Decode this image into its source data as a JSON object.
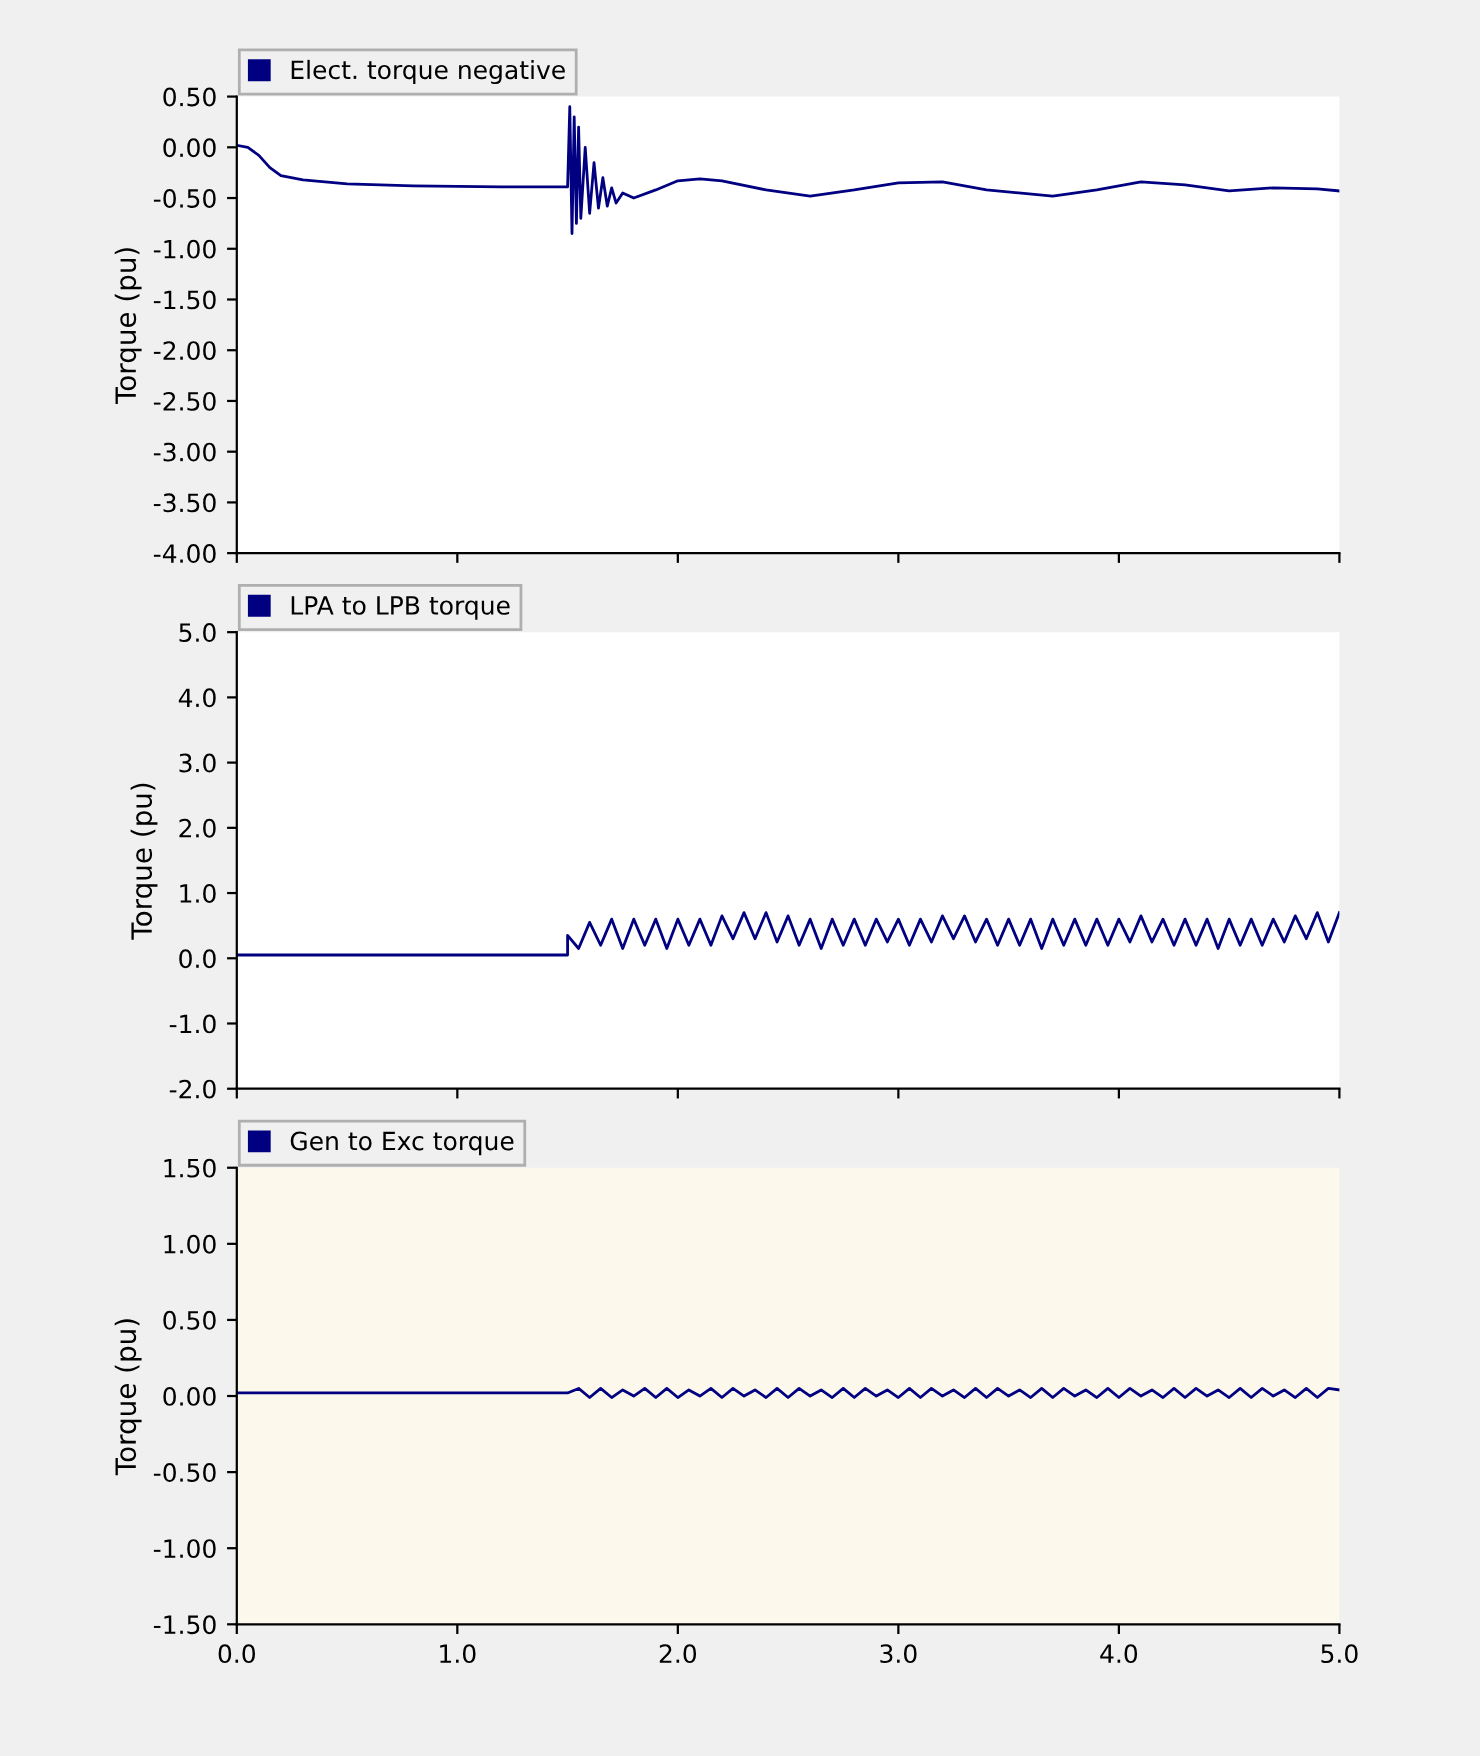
{
  "chart_data": [
    {
      "type": "line",
      "ylabel": "Torque (pu)",
      "legend": "top left",
      "tick_labels": "y",
      "grid": false,
      "xlim": [
        0,
        5
      ],
      "xticks": [
        0,
        1,
        2,
        3,
        4,
        5
      ],
      "ylim": [
        -4,
        0.5
      ],
      "yticks": [
        {
          "value": 0.5,
          "label": "0.50"
        },
        {
          "value": 0,
          "label": "0.00"
        },
        {
          "value": -0.5,
          "label": "-0.50"
        },
        {
          "value": -1,
          "label": "-1.00"
        },
        {
          "value": -1.5,
          "label": "-1.50"
        },
        {
          "value": -2,
          "label": "-2.00"
        },
        {
          "value": -2.5,
          "label": "-2.50"
        },
        {
          "value": -3,
          "label": "-3.00"
        },
        {
          "value": -3.5,
          "label": "-3.50"
        },
        {
          "value": -4,
          "label": "-4.00"
        }
      ],
      "series": [
        {
          "name": "Elect. torque negative",
          "color": "#000080",
          "x": [
            0,
            0.05,
            0.1,
            0.15,
            0.2,
            0.3,
            0.5,
            0.8,
            1.2,
            1.5,
            1.51,
            1.52,
            1.53,
            1.54,
            1.55,
            1.56,
            1.58,
            1.6,
            1.62,
            1.64,
            1.66,
            1.68,
            1.7,
            1.72,
            1.75,
            1.8,
            1.9,
            2.0,
            2.1,
            2.2,
            2.4,
            2.6,
            2.8,
            3.0,
            3.2,
            3.4,
            3.7,
            3.9,
            4.1,
            4.3,
            4.5,
            4.7,
            4.9,
            5.0
          ],
          "values": [
            0.02,
            0.0,
            -0.08,
            -0.2,
            -0.28,
            -0.32,
            -0.36,
            -0.38,
            -0.39,
            -0.39,
            0.4,
            -0.85,
            0.3,
            -0.75,
            0.2,
            -0.7,
            0.0,
            -0.65,
            -0.15,
            -0.6,
            -0.3,
            -0.58,
            -0.4,
            -0.55,
            -0.45,
            -0.5,
            -0.42,
            -0.33,
            -0.31,
            -0.33,
            -0.42,
            -0.48,
            -0.42,
            -0.35,
            -0.34,
            -0.42,
            -0.48,
            -0.42,
            -0.34,
            -0.37,
            -0.43,
            -0.4,
            -0.41,
            -0.43
          ]
        }
      ]
    },
    {
      "type": "line",
      "ylabel": "Torque (pu)",
      "legend": "top left",
      "tick_labels": "y",
      "grid": false,
      "xlim": [
        0,
        5
      ],
      "xticks": [
        0,
        1,
        2,
        3,
        4,
        5
      ],
      "ylim": [
        -2,
        5
      ],
      "yticks": [
        {
          "value": 5,
          "label": "5.0"
        },
        {
          "value": 4,
          "label": "4.0"
        },
        {
          "value": 3,
          "label": "3.0"
        },
        {
          "value": 2,
          "label": "2.0"
        },
        {
          "value": 1,
          "label": "1.0"
        },
        {
          "value": 0,
          "label": "0.0"
        },
        {
          "value": -1,
          "label": "-1.0"
        },
        {
          "value": -2,
          "label": "-2.0"
        }
      ],
      "series": [
        {
          "name": "LPA to LPB torque",
          "color": "#000080",
          "x": [
            0,
            1.5,
            1.5,
            1.55,
            1.6,
            1.65,
            1.7,
            1.75,
            1.8,
            1.85,
            1.9,
            1.95,
            2.0,
            2.05,
            2.1,
            2.15,
            2.2,
            2.25,
            2.3,
            2.35,
            2.4,
            2.45,
            2.5,
            2.55,
            2.6,
            2.65,
            2.7,
            2.75,
            2.8,
            2.85,
            2.9,
            2.95,
            3.0,
            3.05,
            3.1,
            3.15,
            3.2,
            3.25,
            3.3,
            3.35,
            3.4,
            3.45,
            3.5,
            3.55,
            3.6,
            3.65,
            3.7,
            3.75,
            3.8,
            3.85,
            3.9,
            3.95,
            4.0,
            4.05,
            4.1,
            4.15,
            4.2,
            4.25,
            4.3,
            4.35,
            4.4,
            4.45,
            4.5,
            4.55,
            4.6,
            4.65,
            4.7,
            4.75,
            4.8,
            4.85,
            4.9,
            4.95,
            5.0
          ],
          "values": [
            0.05,
            0.05,
            0.35,
            0.15,
            0.55,
            0.2,
            0.6,
            0.15,
            0.6,
            0.2,
            0.6,
            0.15,
            0.6,
            0.2,
            0.6,
            0.2,
            0.65,
            0.3,
            0.7,
            0.3,
            0.7,
            0.25,
            0.65,
            0.2,
            0.6,
            0.15,
            0.6,
            0.2,
            0.6,
            0.2,
            0.6,
            0.25,
            0.6,
            0.2,
            0.6,
            0.25,
            0.65,
            0.3,
            0.65,
            0.25,
            0.6,
            0.2,
            0.6,
            0.2,
            0.6,
            0.15,
            0.6,
            0.2,
            0.6,
            0.2,
            0.6,
            0.2,
            0.6,
            0.25,
            0.65,
            0.25,
            0.6,
            0.2,
            0.6,
            0.2,
            0.6,
            0.15,
            0.6,
            0.2,
            0.6,
            0.2,
            0.6,
            0.25,
            0.65,
            0.3,
            0.7,
            0.25,
            0.7
          ]
        }
      ]
    },
    {
      "type": "line",
      "ylabel": "Torque (pu)",
      "legend": "top left",
      "grid": false,
      "xlim": [
        0,
        5
      ],
      "ylim": [
        -1.5,
        1.5
      ],
      "xticks": [
        {
          "value": 0,
          "label": "0.0"
        },
        {
          "value": 1,
          "label": "1.0"
        },
        {
          "value": 2,
          "label": "2.0"
        },
        {
          "value": 3,
          "label": "3.0"
        },
        {
          "value": 4,
          "label": "4.0"
        },
        {
          "value": 5,
          "label": "5.0"
        }
      ],
      "yticks": [
        {
          "value": 1.5,
          "label": "1.50"
        },
        {
          "value": 1,
          "label": "1.00"
        },
        {
          "value": 0.5,
          "label": "0.50"
        },
        {
          "value": 0,
          "label": "0.00"
        },
        {
          "value": -0.5,
          "label": "-0.50"
        },
        {
          "value": -1,
          "label": "-1.00"
        },
        {
          "value": -1.5,
          "label": "-1.50"
        }
      ],
      "series": [
        {
          "name": "Gen to Exc torque",
          "color": "#000080",
          "x": [
            0,
            1.5,
            1.55,
            1.6,
            1.65,
            1.7,
            1.75,
            1.8,
            1.85,
            1.9,
            1.95,
            2.0,
            2.05,
            2.1,
            2.15,
            2.2,
            2.25,
            2.3,
            2.35,
            2.4,
            2.45,
            2.5,
            2.55,
            2.6,
            2.65,
            2.7,
            2.75,
            2.8,
            2.85,
            2.9,
            2.95,
            3.0,
            3.05,
            3.1,
            3.15,
            3.2,
            3.25,
            3.3,
            3.35,
            3.4,
            3.45,
            3.5,
            3.55,
            3.6,
            3.65,
            3.7,
            3.75,
            3.8,
            3.85,
            3.9,
            3.95,
            4.0,
            4.05,
            4.1,
            4.15,
            4.2,
            4.25,
            4.3,
            4.35,
            4.4,
            4.45,
            4.5,
            4.55,
            4.6,
            4.65,
            4.7,
            4.75,
            4.8,
            4.85,
            4.9,
            4.95,
            5.0
          ],
          "values": [
            0.02,
            0.02,
            0.05,
            -0.01,
            0.05,
            -0.01,
            0.04,
            0.0,
            0.05,
            -0.01,
            0.05,
            -0.01,
            0.04,
            0.0,
            0.05,
            -0.01,
            0.05,
            0.0,
            0.04,
            -0.01,
            0.05,
            -0.01,
            0.05,
            0.0,
            0.04,
            -0.01,
            0.05,
            -0.01,
            0.05,
            0.0,
            0.04,
            -0.01,
            0.05,
            -0.01,
            0.05,
            0.0,
            0.04,
            -0.01,
            0.05,
            -0.01,
            0.05,
            0.0,
            0.04,
            -0.01,
            0.05,
            -0.01,
            0.05,
            0.0,
            0.04,
            -0.01,
            0.05,
            -0.01,
            0.05,
            0.0,
            0.04,
            -0.01,
            0.05,
            -0.01,
            0.05,
            0.0,
            0.04,
            -0.01,
            0.05,
            -0.01,
            0.05,
            0.0,
            0.04,
            -0.01,
            0.05,
            -0.01,
            0.05,
            0.04
          ]
        }
      ]
    }
  ]
}
